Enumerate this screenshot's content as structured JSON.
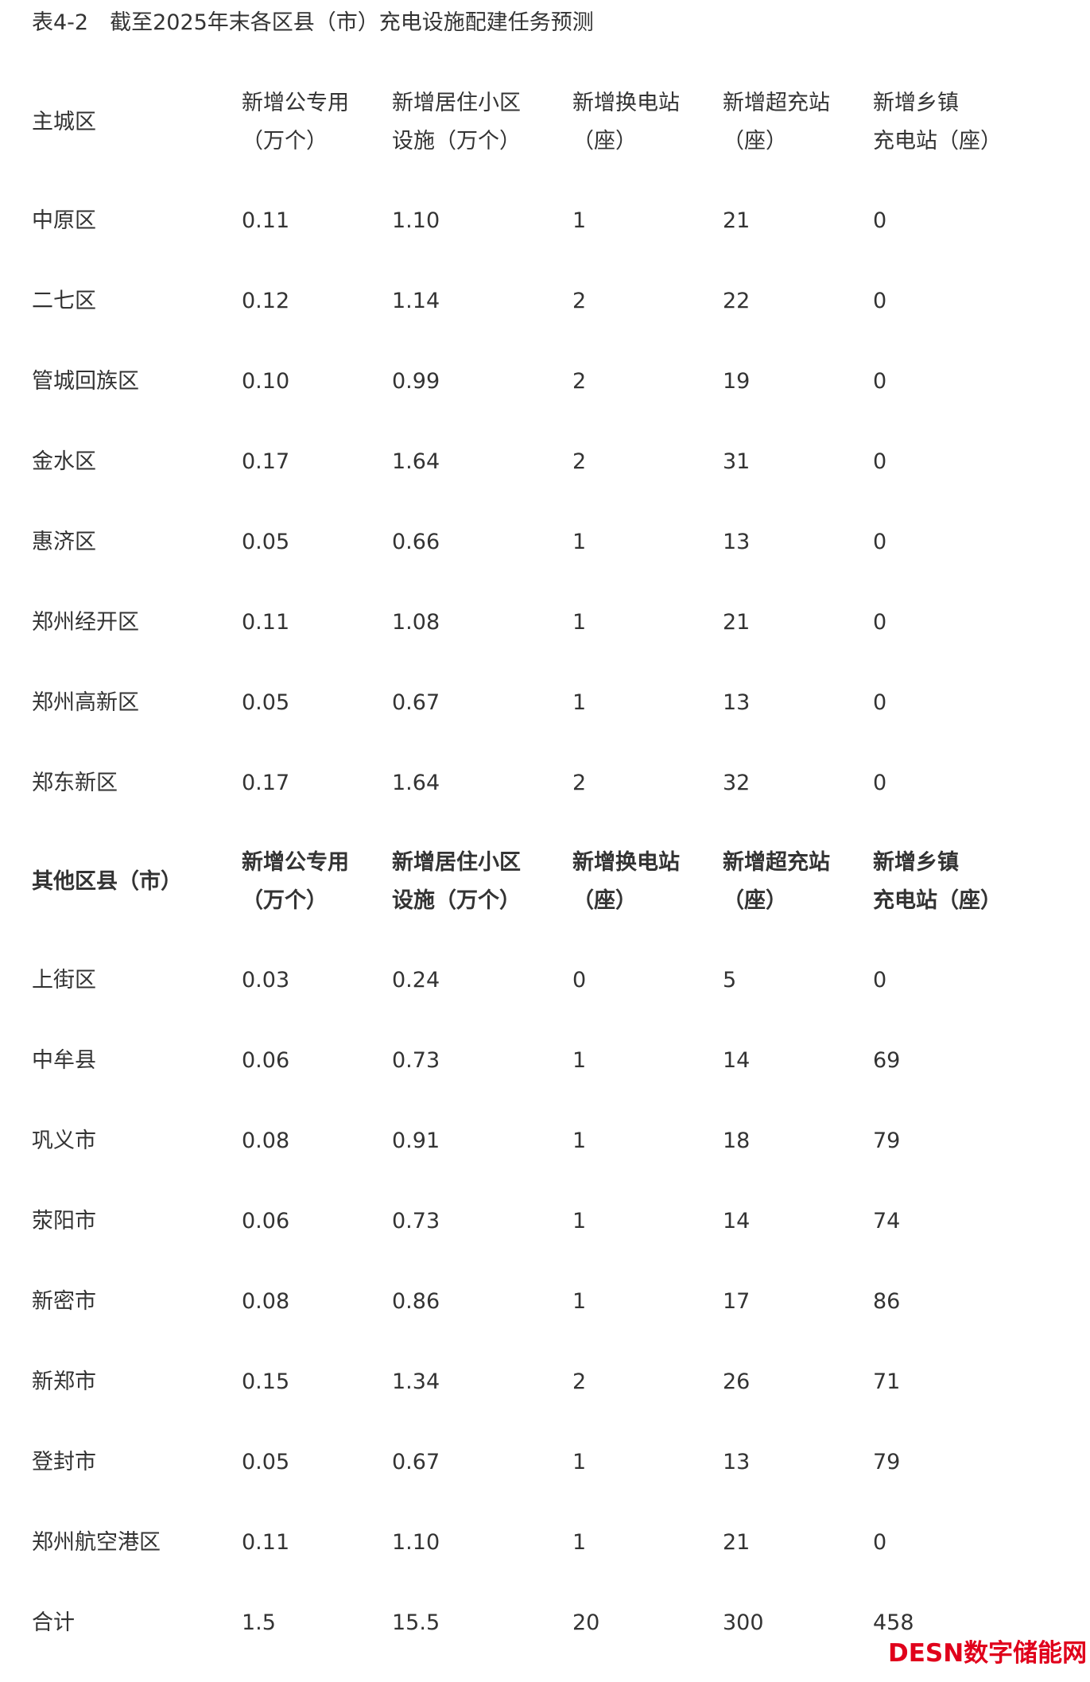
{
  "title": "表4-2　截至2025年末各区县（市）充电设施配建任务预测",
  "sections": [
    {
      "header": [
        "主城区",
        "新增公专用\n（万个）",
        "新增居住小区\n设施（万个）",
        "新增换电站\n（座）",
        "新增超充站\n（座）",
        "新增乡镇\n充电站（座）"
      ],
      "header_bold": false,
      "rows": [
        [
          "中原区",
          "0.11",
          "1.10",
          "1",
          "21",
          "0"
        ],
        [
          "二七区",
          "0.12",
          "1.14",
          "2",
          "22",
          "0"
        ],
        [
          "管城回族区",
          "0.10",
          "0.99",
          "2",
          "19",
          "0"
        ],
        [
          "金水区",
          "0.17",
          "1.64",
          "2",
          "31",
          "0"
        ],
        [
          "惠济区",
          "0.05",
          "0.66",
          "1",
          "13",
          "0"
        ],
        [
          "郑州经开区",
          "0.11",
          "1.08",
          "1",
          "21",
          "0"
        ],
        [
          "郑州高新区",
          "0.05",
          "0.67",
          "1",
          "13",
          "0"
        ],
        [
          "郑东新区",
          "0.17",
          "1.64",
          "2",
          "32",
          "0"
        ]
      ]
    },
    {
      "header": [
        "其他区县（市）",
        "新增公专用\n（万个）",
        "新增居住小区\n设施（万个）",
        "新增换电站\n（座）",
        "新增超充站\n（座）",
        "新增乡镇\n充电站（座）"
      ],
      "header_bold": true,
      "rows": [
        [
          "上街区",
          "0.03",
          "0.24",
          "0",
          "5",
          "0"
        ],
        [
          "中牟县",
          "0.06",
          "0.73",
          "1",
          "14",
          "69"
        ],
        [
          "巩义市",
          "0.08",
          "0.91",
          "1",
          "18",
          "79"
        ],
        [
          "荥阳市",
          "0.06",
          "0.73",
          "1",
          "14",
          "74"
        ],
        [
          "新密市",
          "0.08",
          "0.86",
          "1",
          "17",
          "86"
        ],
        [
          "新郑市",
          "0.15",
          "1.34",
          "2",
          "26",
          "71"
        ],
        [
          "登封市",
          "0.05",
          "0.67",
          "1",
          "13",
          "79"
        ],
        [
          "郑州航空港区",
          "0.11",
          "1.10",
          "1",
          "21",
          "0"
        ],
        [
          "合计",
          "1.5",
          "15.5",
          "20",
          "300",
          "458"
        ]
      ]
    }
  ],
  "watermark": "DESN数字储能网",
  "colors": {
    "text": "#333333",
    "watermark": "#e0001b"
  }
}
